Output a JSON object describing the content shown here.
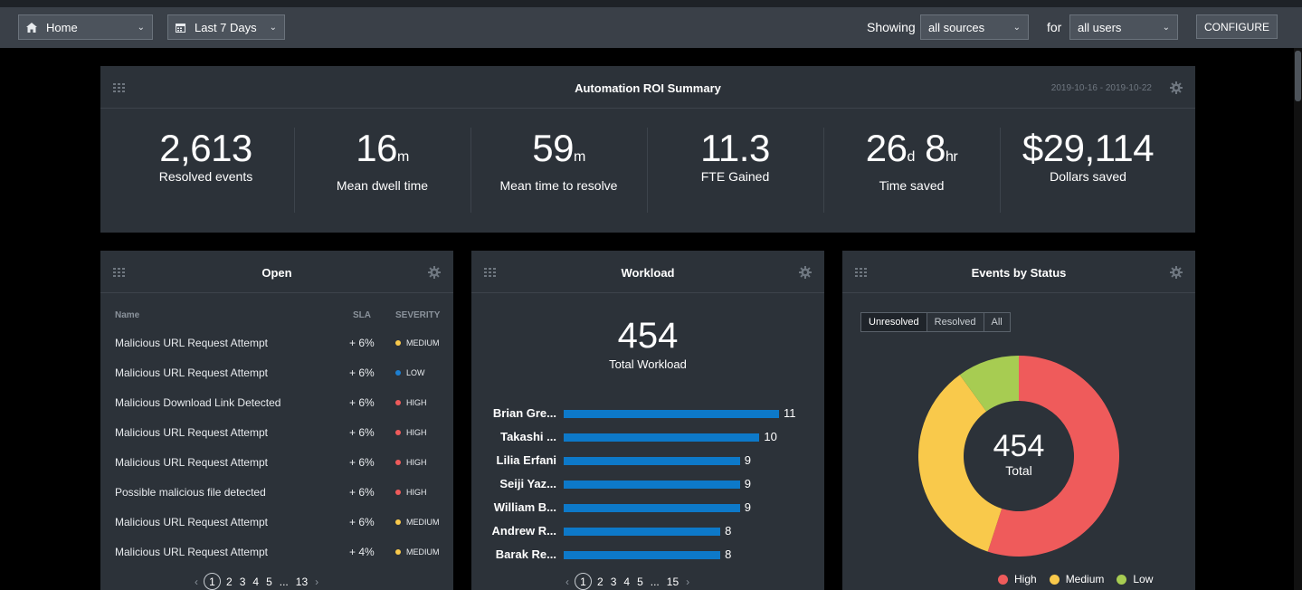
{
  "topbar": {
    "home_label": "Home",
    "range_label": "Last 7 Days",
    "showing_label": "Showing",
    "sources_value": "all sources",
    "for_label": "for",
    "users_value": "all users",
    "configure_label": "CONFIGURE"
  },
  "roi": {
    "title": "Automation ROI Summary",
    "date_range": "2019-10-16 - 2019-10-22",
    "stats": [
      {
        "value": "2,613",
        "unit": "",
        "label": "Resolved events"
      },
      {
        "value": "16",
        "unit": "m",
        "label": "Mean dwell time"
      },
      {
        "value": "59",
        "unit": "m",
        "label": "Mean time to resolve"
      },
      {
        "value": "11.3",
        "unit": "",
        "label": "FTE Gained"
      },
      {
        "value": "26",
        "unit": "d",
        "value2": "8",
        "unit2": "hr",
        "label": "Time saved"
      },
      {
        "value": "$29,114",
        "unit": "",
        "label": "Dollars saved"
      }
    ]
  },
  "open": {
    "title": "Open",
    "col_name": "Name",
    "col_sla": "SLA",
    "col_severity": "SEVERITY",
    "rows": [
      {
        "name": "Malicious URL Request Attempt",
        "sla": "+ 6%",
        "severity": "MEDIUM"
      },
      {
        "name": "Malicious URL Request Attempt",
        "sla": "+ 6%",
        "severity": "LOW"
      },
      {
        "name": "Malicious Download Link Detected",
        "sla": "+ 6%",
        "severity": "HIGH"
      },
      {
        "name": "Malicious URL Request Attempt",
        "sla": "+ 6%",
        "severity": "HIGH"
      },
      {
        "name": "Malicious URL Request Attempt",
        "sla": "+ 6%",
        "severity": "HIGH"
      },
      {
        "name": "Possible malicious file detected",
        "sla": "+ 6%",
        "severity": "HIGH"
      },
      {
        "name": "Malicious URL Request Attempt",
        "sla": "+ 6%",
        "severity": "MEDIUM"
      },
      {
        "name": "Malicious URL Request Attempt",
        "sla": "+ 4%",
        "severity": "MEDIUM"
      }
    ],
    "pager": {
      "prev": "‹",
      "pages": [
        "1",
        "2",
        "3",
        "4",
        "5",
        "...",
        "13"
      ],
      "next": "›"
    }
  },
  "workload": {
    "title": "Workload",
    "total": "454",
    "total_label": "Total Workload",
    "max": 11,
    "rows": [
      {
        "name": "Brian Gre...",
        "value": 11
      },
      {
        "name": "Takashi ...",
        "value": 10
      },
      {
        "name": "Lilia Erfani",
        "value": 9
      },
      {
        "name": "Seiji Yaz...",
        "value": 9
      },
      {
        "name": "William B...",
        "value": 9
      },
      {
        "name": "Andrew R...",
        "value": 8
      },
      {
        "name": "Barak Re...",
        "value": 8
      }
    ],
    "pager": {
      "prev": "‹",
      "pages": [
        "1",
        "2",
        "3",
        "4",
        "5",
        "...",
        "15"
      ],
      "next": "›"
    }
  },
  "status": {
    "title": "Events by Status",
    "tabs": [
      "Unresolved",
      "Resolved",
      "All"
    ],
    "active_tab": "Unresolved",
    "center_value": "454",
    "center_label": "Total",
    "slices": [
      {
        "name": "High",
        "fraction": 0.55,
        "color": "#ef5b5b"
      },
      {
        "name": "Medium",
        "fraction": 0.35,
        "color": "#f9c94b"
      },
      {
        "name": "Low",
        "fraction": 0.1,
        "color": "#a7cc52"
      }
    ]
  },
  "severity_colors": {
    "HIGH": "#ef5b5b",
    "MEDIUM": "#f9c94b",
    "LOW": "#1d7fd1"
  }
}
